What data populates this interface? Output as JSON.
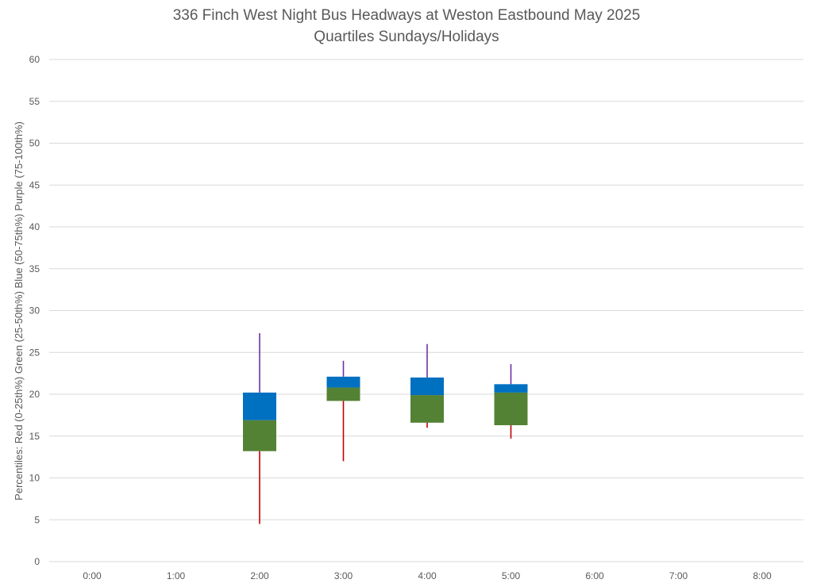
{
  "chart_data": {
    "type": "box",
    "title": "336 Finch West Night Bus Headways at Weston Eastbound May 2025",
    "subtitle": "Quartiles Sundays/Holidays",
    "ylabel": "Percentiles:  Red (0-25th%)  Green (25-50th%)  Blue (50-75th%)  Purple (75-100th%)",
    "xlabel": "",
    "ylim": [
      0,
      60
    ],
    "yticks": [
      0,
      5,
      10,
      15,
      20,
      25,
      30,
      35,
      40,
      45,
      50,
      55,
      60
    ],
    "categories": [
      "0:00",
      "1:00",
      "2:00",
      "3:00",
      "4:00",
      "5:00",
      "6:00",
      "7:00",
      "8:00"
    ],
    "grid": true,
    "colors": {
      "min_to_q1": "#c00000",
      "q1_to_median": "#548235",
      "median_to_q3": "#0070c0",
      "q3_to_max": "#7030a0"
    },
    "series": [
      {
        "category": "2:00",
        "min": 4.5,
        "q1": 13.2,
        "median": 16.9,
        "q3": 20.2,
        "max": 27.3
      },
      {
        "category": "3:00",
        "min": 12.0,
        "q1": 19.2,
        "median": 20.8,
        "q3": 22.1,
        "max": 24.0
      },
      {
        "category": "4:00",
        "min": 16.0,
        "q1": 16.6,
        "median": 19.9,
        "q3": 22.0,
        "max": 26.0
      },
      {
        "category": "5:00",
        "min": 14.7,
        "q1": 16.3,
        "median": 20.2,
        "q3": 21.2,
        "max": 23.6
      }
    ]
  }
}
